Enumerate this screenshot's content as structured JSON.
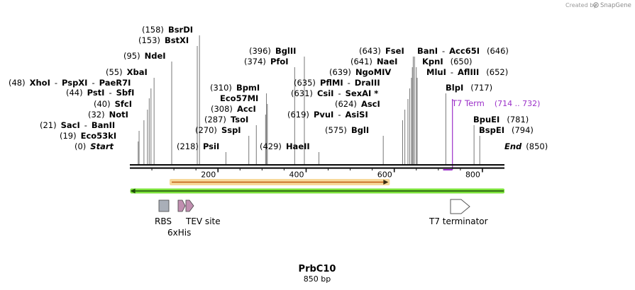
{
  "credit": {
    "text": "Created by",
    "brand": "SnapGene"
  },
  "title": "PrbC10",
  "length_label": "850 bp",
  "sequence_length": 850,
  "ticks": [
    {
      "pos": 200,
      "label": "200"
    },
    {
      "pos": 400,
      "label": "400"
    },
    {
      "pos": 600,
      "label": "600"
    },
    {
      "pos": 800,
      "label": "800"
    }
  ],
  "ends": {
    "start": {
      "pos_label": "(0)",
      "name": "Start"
    },
    "end": {
      "name": "End",
      "pos_label": "(850)"
    }
  },
  "sites": [
    {
      "pos": 19,
      "pos_label": "(19)",
      "names": [
        "Eco53kI"
      ]
    },
    {
      "pos": 21,
      "pos_label": "(21)",
      "names": [
        "SacI",
        "BanII"
      ]
    },
    {
      "pos": 32,
      "pos_label": "(32)",
      "names": [
        "NotI"
      ]
    },
    {
      "pos": 40,
      "pos_label": "(40)",
      "names": [
        "SfcI"
      ]
    },
    {
      "pos": 44,
      "pos_label": "(44)",
      "names": [
        "PstI",
        "SbfI"
      ]
    },
    {
      "pos": 48,
      "pos_label": "(48)",
      "names": [
        "XhoI",
        "PspXI",
        "PaeR7I"
      ]
    },
    {
      "pos": 55,
      "pos_label": "(55)",
      "names": [
        "XbaI"
      ]
    },
    {
      "pos": 95,
      "pos_label": "(95)",
      "names": [
        "NdeI"
      ]
    },
    {
      "pos": 153,
      "pos_label": "(153)",
      "names": [
        "BstXI"
      ]
    },
    {
      "pos": 158,
      "pos_label": "(158)",
      "names": [
        "BsrDI"
      ]
    },
    {
      "pos": 218,
      "pos_label": "(218)",
      "names": [
        "PsiI"
      ]
    },
    {
      "pos": 270,
      "pos_label": "(270)",
      "names": [
        "SspI"
      ]
    },
    {
      "pos": 287,
      "pos_label": "(287)",
      "names": [
        "TsoI"
      ]
    },
    {
      "pos": 308,
      "pos_label": "(308)",
      "names": [
        "AccI"
      ]
    },
    {
      "pos": 310,
      "pos_label": "(310)",
      "names": [
        "BpmI"
      ]
    },
    {
      "pos": 312,
      "pos_label": "",
      "names": [
        "Eco57MI"
      ]
    },
    {
      "pos": 374,
      "pos_label": "(374)",
      "names": [
        "PfoI"
      ]
    },
    {
      "pos": 396,
      "pos_label": "(396)",
      "names": [
        "BglII"
      ]
    },
    {
      "pos": 429,
      "pos_label": "(429)",
      "names": [
        "HaeII"
      ]
    },
    {
      "pos": 575,
      "pos_label": "(575)",
      "names": [
        "BglI"
      ]
    },
    {
      "pos": 619,
      "pos_label": "(619)",
      "names": [
        "PvuI",
        "AsiSI"
      ]
    },
    {
      "pos": 624,
      "pos_label": "(624)",
      "names": [
        "AscI"
      ]
    },
    {
      "pos": 631,
      "pos_label": "(631)",
      "names": [
        "CsiI",
        "SexAI *"
      ]
    },
    {
      "pos": 635,
      "pos_label": "(635)",
      "names": [
        "PflMI",
        "DraIII"
      ]
    },
    {
      "pos": 639,
      "pos_label": "(639)",
      "names": [
        "NgoMIV"
      ]
    },
    {
      "pos": 641,
      "pos_label": "(641)",
      "names": [
        "NaeI"
      ]
    },
    {
      "pos": 643,
      "pos_label": "(643)",
      "names": [
        "FseI"
      ]
    },
    {
      "pos": 646,
      "pos_label": "(646)",
      "names": [
        "BanI",
        "Acc65I"
      ]
    },
    {
      "pos": 650,
      "pos_label": "(650)",
      "names": [
        "KpnI"
      ]
    },
    {
      "pos": 652,
      "pos_label": "(652)",
      "names": [
        "MluI",
        "AflIII"
      ]
    },
    {
      "pos": 717,
      "pos_label": "(717)",
      "names": [
        "BlpI"
      ]
    },
    {
      "pos": 781,
      "pos_label": "(781)",
      "names": [
        "BpuEI"
      ]
    },
    {
      "pos": 794,
      "pos_label": "(794)",
      "names": [
        "BspEI"
      ]
    }
  ],
  "t7_term": {
    "name": "T7 Term",
    "range": "(714 .. 732)",
    "start": 714,
    "end": 732,
    "color": "#9b30c8"
  },
  "orange_feature": {
    "start": 95,
    "end": 585,
    "color": "#e89a3c"
  },
  "green_feature": {
    "start": 1,
    "end": 850,
    "color": "#66dd22"
  },
  "features": [
    {
      "name": "RBS",
      "type": "rbs"
    },
    {
      "name": "6xHis",
      "type": "tag"
    },
    {
      "name": "TEV site",
      "type": "site"
    },
    {
      "name": "T7 terminator",
      "type": "terminator"
    }
  ],
  "colors": {
    "backbone": "#111111",
    "rbs": "#a9afb8",
    "tag": "#c08fb0",
    "terminator": "#ffffff",
    "enzyme_label": "#000000"
  }
}
